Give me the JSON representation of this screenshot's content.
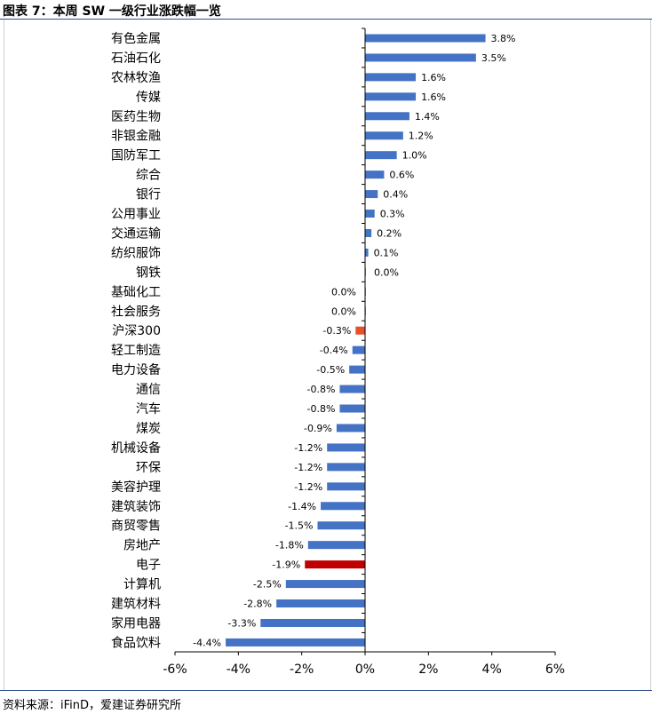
{
  "title": "图表 7：本周 SW 一级行业涨跌幅一览",
  "source": "资料来源：iFinD，爱建证券研究所",
  "colors": {
    "default": "#4472c4",
    "index": "#e8502c",
    "highlight": "#c00000"
  },
  "chart_data": {
    "type": "bar",
    "orientation": "horizontal",
    "categories": [
      "有色金属",
      "石油石化",
      "农林牧渔",
      "传媒",
      "医药生物",
      "非银金融",
      "国防军工",
      "综合",
      "银行",
      "公用事业",
      "交通运输",
      "纺织服饰",
      "钢铁",
      "基础化工",
      "社会服务",
      "沪深300",
      "轻工制造",
      "电力设备",
      "通信",
      "汽车",
      "煤炭",
      "机械设备",
      "环保",
      "美容护理",
      "建筑装饰",
      "商贸零售",
      "房地产",
      "电子",
      "计算机",
      "建筑材料",
      "家用电器",
      "食品饮料"
    ],
    "values": [
      3.8,
      3.5,
      1.6,
      1.6,
      1.4,
      1.2,
      1.0,
      0.6,
      0.4,
      0.3,
      0.2,
      0.1,
      0.0,
      0.0,
      0.0,
      -0.3,
      -0.4,
      -0.5,
      -0.8,
      -0.8,
      -0.9,
      -1.2,
      -1.2,
      -1.2,
      -1.4,
      -1.5,
      -1.8,
      -1.9,
      -2.5,
      -2.8,
      -3.3,
      -4.4
    ],
    "value_labels": [
      "3.8%",
      "3.5%",
      "1.6%",
      "1.6%",
      "1.4%",
      "1.2%",
      "1.0%",
      "0.6%",
      "0.4%",
      "0.3%",
      "0.2%",
      "0.1%",
      "0.0%",
      "0.0%",
      "0.0%",
      "-0.3%",
      "-0.4%",
      "-0.5%",
      "-0.8%",
      "-0.8%",
      "-0.9%",
      "-1.2%",
      "-1.2%",
      "-1.2%",
      "-1.4%",
      "-1.5%",
      "-1.8%",
      "-1.9%",
      "-2.5%",
      "-2.8%",
      "-3.3%",
      "-4.4%"
    ],
    "highlights": {
      "沪深300": "index",
      "电子": "highlight"
    },
    "xlim": [
      -6,
      6
    ],
    "xticks": [
      -6,
      -4,
      -2,
      0,
      2,
      4,
      6
    ],
    "xtick_labels": [
      "-6%",
      "-4%",
      "-2%",
      "0%",
      "2%",
      "4%",
      "6%"
    ],
    "grid": false,
    "legend": "none"
  }
}
